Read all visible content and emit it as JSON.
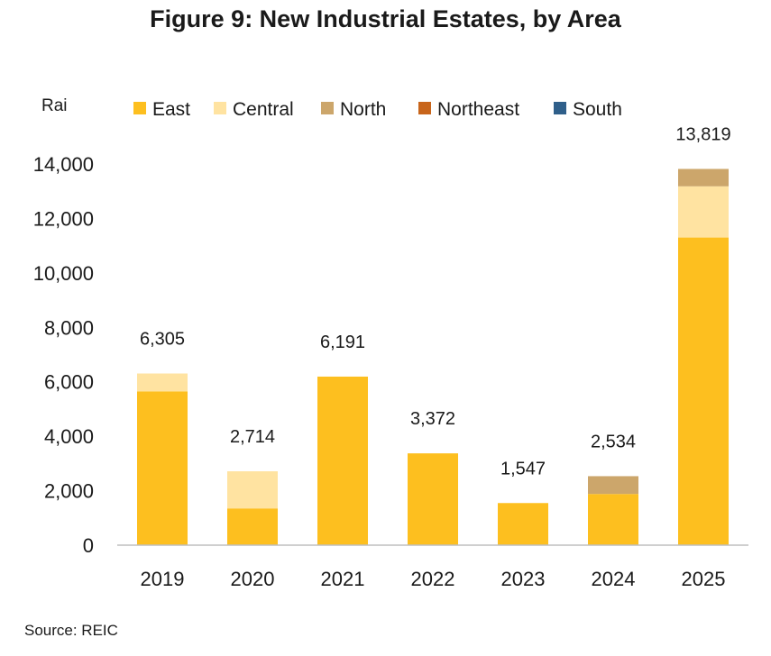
{
  "chart_data": {
    "type": "bar",
    "stacked": true,
    "title": "Figure 9: New Industrial Estates, by Area",
    "ylabel": "Rai",
    "xlabel": "",
    "source": "Source: REIC",
    "categories": [
      "2019",
      "2020",
      "2021",
      "2022",
      "2023",
      "2024",
      "2025"
    ],
    "ylim": [
      0,
      14000
    ],
    "yticks": [
      0,
      2000,
      4000,
      6000,
      8000,
      10000,
      12000,
      14000
    ],
    "ytick_labels": [
      "0",
      "2,000",
      "4,000",
      "6,000",
      "8,000",
      "10,000",
      "12,000",
      "14,000"
    ],
    "grid": false,
    "legend_position": "top",
    "series": [
      {
        "name": "East",
        "color": "#FDBF1F",
        "values": [
          5650,
          1350,
          6191,
          3372,
          1547,
          1880,
          11300
        ]
      },
      {
        "name": "Central",
        "color": "#FFE3A1",
        "values": [
          655,
          1364,
          0,
          0,
          0,
          0,
          1880
        ]
      },
      {
        "name": "North",
        "color": "#CCA66B",
        "values": [
          0,
          0,
          0,
          0,
          0,
          654,
          639
        ]
      },
      {
        "name": "Northeast",
        "color": "#C8651B",
        "values": [
          0,
          0,
          0,
          0,
          0,
          0,
          0
        ]
      },
      {
        "name": "South",
        "color": "#2F5F8A",
        "values": [
          0,
          0,
          0,
          0,
          0,
          0,
          0
        ]
      }
    ],
    "totals": [
      6305,
      2714,
      6191,
      3372,
      1547,
      2534,
      13819
    ],
    "total_labels": [
      "6,305",
      "2,714",
      "6,191",
      "3,372",
      "1,547",
      "2,534",
      "13,819"
    ]
  }
}
